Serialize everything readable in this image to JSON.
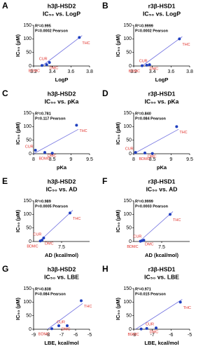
{
  "chart_data": [
    {
      "type": "scatter",
      "label": "A",
      "title": "h3β-HSD2",
      "subtitle": "IC₅₀ vs. LogP",
      "xlabel": "LogP",
      "ylabel": "IC₅₀ (µM)",
      "annotations": [
        "R²=0.995",
        "P=0.0002 Pearson"
      ],
      "categories": [
        "BDMC",
        "DMC",
        "CUR",
        "THC"
      ],
      "x": [
        3.29,
        3.34,
        3.37,
        3.69
      ],
      "values": [
        2,
        5,
        13,
        105
      ],
      "fit": {
        "x": [
          3.29,
          3.72
        ],
        "y": [
          0,
          112
        ]
      },
      "xlim": [
        3.2,
        3.8
      ],
      "xticks": [
        3.2,
        3.4,
        3.6,
        3.8
      ],
      "ylim": [
        0,
        150
      ],
      "yticks": [
        0,
        50,
        100,
        150
      ],
      "color": "#1f3fbf",
      "fit_color": "#7070e0",
      "label_color": "#e0302a"
    },
    {
      "type": "scatter",
      "label": "B",
      "title": "r3β-HSD1",
      "subtitle": "IC₅₀ vs. LogP",
      "xlabel": "LogP",
      "ylabel": "IC₅₀ (µM)",
      "annotations": [
        "R²=0.9999",
        "P=0.0002 Pearson"
      ],
      "categories": [
        "BDMC",
        "DMC",
        "CUR",
        "THC"
      ],
      "x": [
        3.29,
        3.34,
        3.37,
        3.69
      ],
      "values": [
        1,
        3,
        5,
        100
      ],
      "fit": {
        "x": [
          3.29,
          3.72
        ],
        "y": [
          0,
          108
        ]
      },
      "xlim": [
        3.2,
        3.8
      ],
      "xticks": [
        3.2,
        3.4,
        3.6,
        3.8
      ],
      "ylim": [
        0,
        150
      ],
      "yticks": [
        0,
        50,
        100,
        150
      ],
      "color": "#1f3fbf",
      "fit_color": "#7070e0",
      "label_color": "#e0302a"
    },
    {
      "type": "scatter",
      "label": "C",
      "title": "h3β-HSD2",
      "subtitle": "IC₅₀ vs. pKa",
      "xlabel": "pKa",
      "ylabel": "IC₅₀ (µM)",
      "annotations": [
        "R²=0.781",
        "P=0.117 Pearson"
      ],
      "categories": [
        "BDMC",
        "DMC",
        "CUR",
        "THC"
      ],
      "x": [
        8.5,
        8.3,
        8.05,
        9.15
      ],
      "values": [
        2,
        5,
        13,
        105
      ],
      "fit": {
        "x": [
          8.0,
          9.2
        ],
        "y": [
          0,
          90
        ]
      },
      "xlim": [
        8.0,
        9.5
      ],
      "xticks": [
        8.0,
        8.5,
        9.0,
        9.5
      ],
      "ylim": [
        0,
        150
      ],
      "yticks": [
        0,
        50,
        100,
        150
      ],
      "color": "#1f3fbf",
      "fit_color": "#7070e0",
      "label_color": "#e0302a"
    },
    {
      "type": "scatter",
      "label": "D",
      "title": "r3β-HSD1",
      "subtitle": "IC₅₀ vs. pKa",
      "xlabel": "pKa",
      "ylabel": "IC₅₀ (µM)",
      "annotations": [
        "R²=0.840",
        "P=0.084 Pearson"
      ],
      "categories": [
        "BDMC",
        "DMC",
        "CUR",
        "THC"
      ],
      "x": [
        8.5,
        8.3,
        8.05,
        9.15
      ],
      "values": [
        1,
        3,
        5,
        100
      ],
      "fit": {
        "x": [
          8.0,
          9.2
        ],
        "y": [
          0,
          90
        ]
      },
      "xlim": [
        8.0,
        9.5
      ],
      "xticks": [
        8.0,
        8.5,
        9.0,
        9.5
      ],
      "ylim": [
        0,
        150
      ],
      "yticks": [
        0,
        50,
        100,
        150
      ],
      "color": "#1f3fbf",
      "fit_color": "#7070e0",
      "label_color": "#e0302a"
    },
    {
      "type": "scatter",
      "label": "E",
      "title": "h3β-HSD2",
      "subtitle": "IC₅₀ vs. AD",
      "xlabel": "AD (kcal/mol)",
      "ylabel": "IC₅₀ (µM)",
      "annotations": [
        "R²=0.989",
        "P=0.0005 Pearson"
      ],
      "categories": [
        "BDMC",
        "DMC",
        "CUR",
        "THC"
      ],
      "x": [
        7.12,
        7.15,
        7.18,
        7.65
      ],
      "values": [
        2,
        5,
        13,
        105
      ],
      "fit": {
        "x": [
          7.1,
          7.7
        ],
        "y": [
          0,
          115
        ]
      },
      "xlim": [
        7.0,
        8.0
      ],
      "xticks": [
        7.5
      ],
      "ylim": [
        0,
        150
      ],
      "yticks": [
        0,
        50,
        100,
        150
      ],
      "color": "#1f3fbf",
      "fit_color": "#7070e0",
      "label_color": "#e0302a"
    },
    {
      "type": "scatter",
      "label": "F",
      "title": "r3β-HSD1",
      "subtitle": "IC₅₀ vs. AD",
      "xlabel": "AD (kcal/mol)",
      "ylabel": "IC₅₀ (µM)",
      "annotations": [
        "R²=0.9999",
        "P=0.0003 Pearson"
      ],
      "categories": [
        "BDMC",
        "DMC",
        "CUR",
        "THC"
      ],
      "x": [
        7.12,
        7.15,
        7.18,
        7.65
      ],
      "values": [
        1,
        3,
        5,
        100
      ],
      "fit": {
        "x": [
          7.1,
          7.7
        ],
        "y": [
          0,
          110
        ]
      },
      "xlim": [
        7.0,
        8.0
      ],
      "xticks": [
        7.5
      ],
      "ylim": [
        0,
        150
      ],
      "yticks": [
        0,
        50,
        100,
        150
      ],
      "color": "#1f3fbf",
      "fit_color": "#7070e0",
      "label_color": "#e0302a"
    },
    {
      "type": "scatter",
      "label": "G",
      "title": "h3β-HSD2",
      "subtitle": "IC₅₀ vs. LBE",
      "xlabel": "LBE, kcal/mol",
      "ylabel": "IC₅₀ (µM)",
      "annotations": [
        "R²=0.838",
        "P=0.084 Pearson"
      ],
      "categories": [
        "BDMC",
        "DMC",
        "CUR",
        "THC"
      ],
      "x": [
        -7.7,
        -7.2,
        -6.6,
        -5.6
      ],
      "values": [
        2,
        13,
        13,
        105
      ],
      "fit": {
        "x": [
          -8.0,
          -5.5
        ],
        "y": [
          0,
          95
        ]
      },
      "xlim": [
        -9,
        -5
      ],
      "xticks": [
        -9,
        -8,
        -7,
        -6,
        -5
      ],
      "ylim": [
        0,
        150
      ],
      "yticks": [
        0,
        50,
        100,
        150
      ],
      "color": "#1f3fbf",
      "fit_color": "#7070e0",
      "label_color": "#e0302a"
    },
    {
      "type": "scatter",
      "label": "H",
      "title": "r3β-HSD1",
      "subtitle": "IC₅₀ vs. LBE",
      "xlabel": "LBE, kcal/mol",
      "ylabel": "IC₅₀ (µM)",
      "annotations": [
        "R²=0.971",
        "P=0.015 Pearson"
      ],
      "categories": [
        "BDMC",
        "DMC",
        "CUR",
        "THC"
      ],
      "x": [
        -7.6,
        -7.3,
        -6.8,
        -5.5
      ],
      "values": [
        1,
        3,
        5,
        100
      ],
      "fit": {
        "x": [
          -7.9,
          -5.4
        ],
        "y": [
          0,
          110
        ]
      },
      "xlim": [
        -8,
        -5
      ],
      "xticks": [
        -8,
        -7,
        -6,
        -5
      ],
      "ylim": [
        0,
        150
      ],
      "yticks": [
        0,
        50,
        100,
        150
      ],
      "color": "#1f3fbf",
      "fit_color": "#7070e0",
      "label_color": "#e0302a"
    }
  ]
}
